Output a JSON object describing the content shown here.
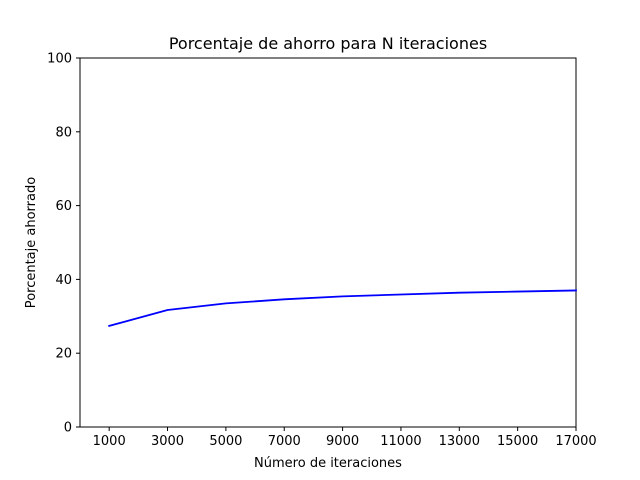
{
  "chart_data": {
    "type": "line",
    "title": "Porcentaje de ahorro para N iteraciones",
    "xlabel": "Número de iteraciones",
    "ylabel": "Porcentaje ahorrado",
    "xlim": [
      0,
      17000
    ],
    "ylim": [
      0,
      100
    ],
    "x_ticks": [
      1000,
      3000,
      5000,
      7000,
      9000,
      11000,
      13000,
      15000,
      17000
    ],
    "y_ticks": [
      0,
      20,
      40,
      60,
      80,
      100
    ],
    "grid": false,
    "series": [
      {
        "color": "#0000ff",
        "x": [
          1000,
          3000,
          5000,
          7000,
          9000,
          11000,
          13000,
          15000,
          17000
        ],
        "values": [
          27.4,
          31.7,
          33.5,
          34.6,
          35.4,
          35.9,
          36.4,
          36.7,
          37.0
        ]
      }
    ]
  }
}
